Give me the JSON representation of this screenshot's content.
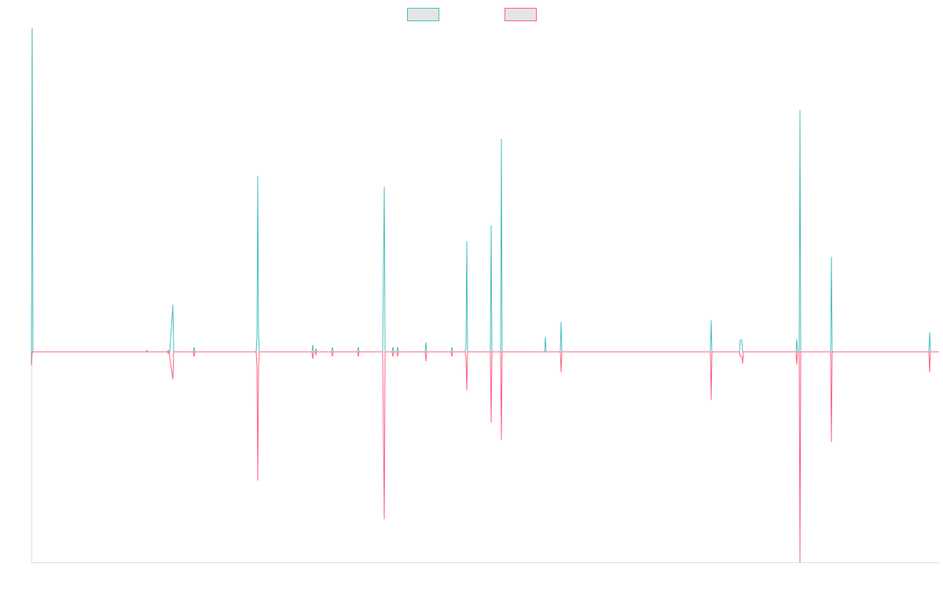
{
  "chart_data": {
    "type": "line",
    "title": "",
    "xlabel": "",
    "ylabel": "",
    "grid": false,
    "legend": "top-center",
    "x_range": [
      0,
      1155
    ],
    "ylim": [
      -268,
      412
    ],
    "series": [
      {
        "color": "#4bc0c0",
        "legend_fill": "#e5e5e5",
        "points": [
          [
            0,
            -17
          ],
          [
            1,
            412
          ],
          [
            2,
            0
          ],
          [
            146,
            0
          ],
          [
            147,
            2
          ],
          [
            148,
            0
          ],
          [
            173,
            0
          ],
          [
            174,
            2
          ],
          [
            175,
            0
          ],
          [
            176,
            0
          ],
          [
            180,
            60
          ],
          [
            181,
            0
          ],
          [
            206,
            0
          ],
          [
            207,
            6
          ],
          [
            208,
            0
          ],
          [
            286,
            0
          ],
          [
            287,
            20
          ],
          [
            288,
            224
          ],
          [
            289,
            20
          ],
          [
            290,
            0
          ],
          [
            357,
            0
          ],
          [
            358,
            9
          ],
          [
            359,
            0
          ],
          [
            361,
            0
          ],
          [
            362,
            4
          ],
          [
            363,
            0
          ],
          [
            382,
            0
          ],
          [
            383,
            6
          ],
          [
            384,
            0
          ],
          [
            415,
            0
          ],
          [
            416,
            6
          ],
          [
            417,
            0
          ],
          [
            447,
            0
          ],
          [
            448,
            114
          ],
          [
            449,
            210
          ],
          [
            450,
            0
          ],
          [
            459,
            0
          ],
          [
            460,
            6
          ],
          [
            461,
            0
          ],
          [
            465,
            0
          ],
          [
            466,
            6
          ],
          [
            467,
            0
          ],
          [
            501,
            0
          ],
          [
            502,
            12
          ],
          [
            503,
            0
          ],
          [
            534,
            0
          ],
          [
            535,
            6
          ],
          [
            536,
            0
          ],
          [
            552,
            0
          ],
          [
            553,
            9
          ],
          [
            554,
            141
          ],
          [
            555,
            0
          ],
          [
            584,
            0
          ],
          [
            585,
            161
          ],
          [
            586,
            0
          ],
          [
            597,
            0
          ],
          [
            598,
            271
          ],
          [
            599,
            0
          ],
          [
            653,
            0
          ],
          [
            654,
            19
          ],
          [
            655,
            0
          ],
          [
            673,
            0
          ],
          [
            674,
            38
          ],
          [
            675,
            0
          ],
          [
            864,
            0
          ],
          [
            865,
            40
          ],
          [
            866,
            0
          ],
          [
            901,
            0
          ],
          [
            902,
            15
          ],
          [
            904,
            15
          ],
          [
            905,
            0
          ],
          [
            973,
            0
          ],
          [
            974,
            16
          ],
          [
            975,
            0
          ],
          [
            977,
            0
          ],
          [
            978,
            308
          ],
          [
            979,
            0
          ],
          [
            1017,
            0
          ],
          [
            1018,
            121
          ],
          [
            1019,
            0
          ],
          [
            1142,
            0
          ],
          [
            1143,
            25
          ],
          [
            1144,
            0
          ],
          [
            1155,
            0
          ]
        ]
      },
      {
        "color": "#ff6384",
        "legend_fill": "#e5e5e5",
        "points": [
          [
            0,
            -17
          ],
          [
            1,
            0
          ],
          [
            146,
            0
          ],
          [
            173,
            0
          ],
          [
            174,
            -2
          ],
          [
            175,
            0
          ],
          [
            180,
            -35
          ],
          [
            181,
            0
          ],
          [
            206,
            0
          ],
          [
            207,
            -6
          ],
          [
            208,
            0
          ],
          [
            286,
            0
          ],
          [
            287,
            -20
          ],
          [
            288,
            -164
          ],
          [
            289,
            -20
          ],
          [
            290,
            0
          ],
          [
            357,
            0
          ],
          [
            358,
            -9
          ],
          [
            359,
            0
          ],
          [
            361,
            0
          ],
          [
            362,
            -4
          ],
          [
            363,
            0
          ],
          [
            382,
            0
          ],
          [
            383,
            -6
          ],
          [
            384,
            0
          ],
          [
            415,
            0
          ],
          [
            416,
            -6
          ],
          [
            417,
            0
          ],
          [
            447,
            0
          ],
          [
            448,
            -114
          ],
          [
            449,
            -213
          ],
          [
            450,
            0
          ],
          [
            459,
            0
          ],
          [
            460,
            -6
          ],
          [
            461,
            0
          ],
          [
            465,
            0
          ],
          [
            466,
            -6
          ],
          [
            467,
            0
          ],
          [
            501,
            0
          ],
          [
            502,
            -12
          ],
          [
            503,
            0
          ],
          [
            534,
            0
          ],
          [
            535,
            -6
          ],
          [
            536,
            0
          ],
          [
            552,
            0
          ],
          [
            553,
            -9
          ],
          [
            554,
            -49
          ],
          [
            555,
            0
          ],
          [
            584,
            0
          ],
          [
            585,
            -90
          ],
          [
            586,
            0
          ],
          [
            597,
            0
          ],
          [
            598,
            -112
          ],
          [
            599,
            0
          ],
          [
            673,
            0
          ],
          [
            674,
            -26
          ],
          [
            675,
            0
          ],
          [
            864,
            0
          ],
          [
            865,
            -61
          ],
          [
            866,
            0
          ],
          [
            901,
            0
          ],
          [
            902,
            -6
          ],
          [
            904,
            -6
          ],
          [
            905,
            -15
          ],
          [
            906,
            0
          ],
          [
            973,
            0
          ],
          [
            974,
            -16
          ],
          [
            975,
            0
          ],
          [
            977,
            0
          ],
          [
            978,
            -268
          ],
          [
            979,
            0
          ],
          [
            1017,
            0
          ],
          [
            1018,
            -115
          ],
          [
            1019,
            0
          ],
          [
            1142,
            0
          ],
          [
            1143,
            -26
          ],
          [
            1144,
            0
          ],
          [
            1155,
            0
          ]
        ]
      }
    ]
  }
}
